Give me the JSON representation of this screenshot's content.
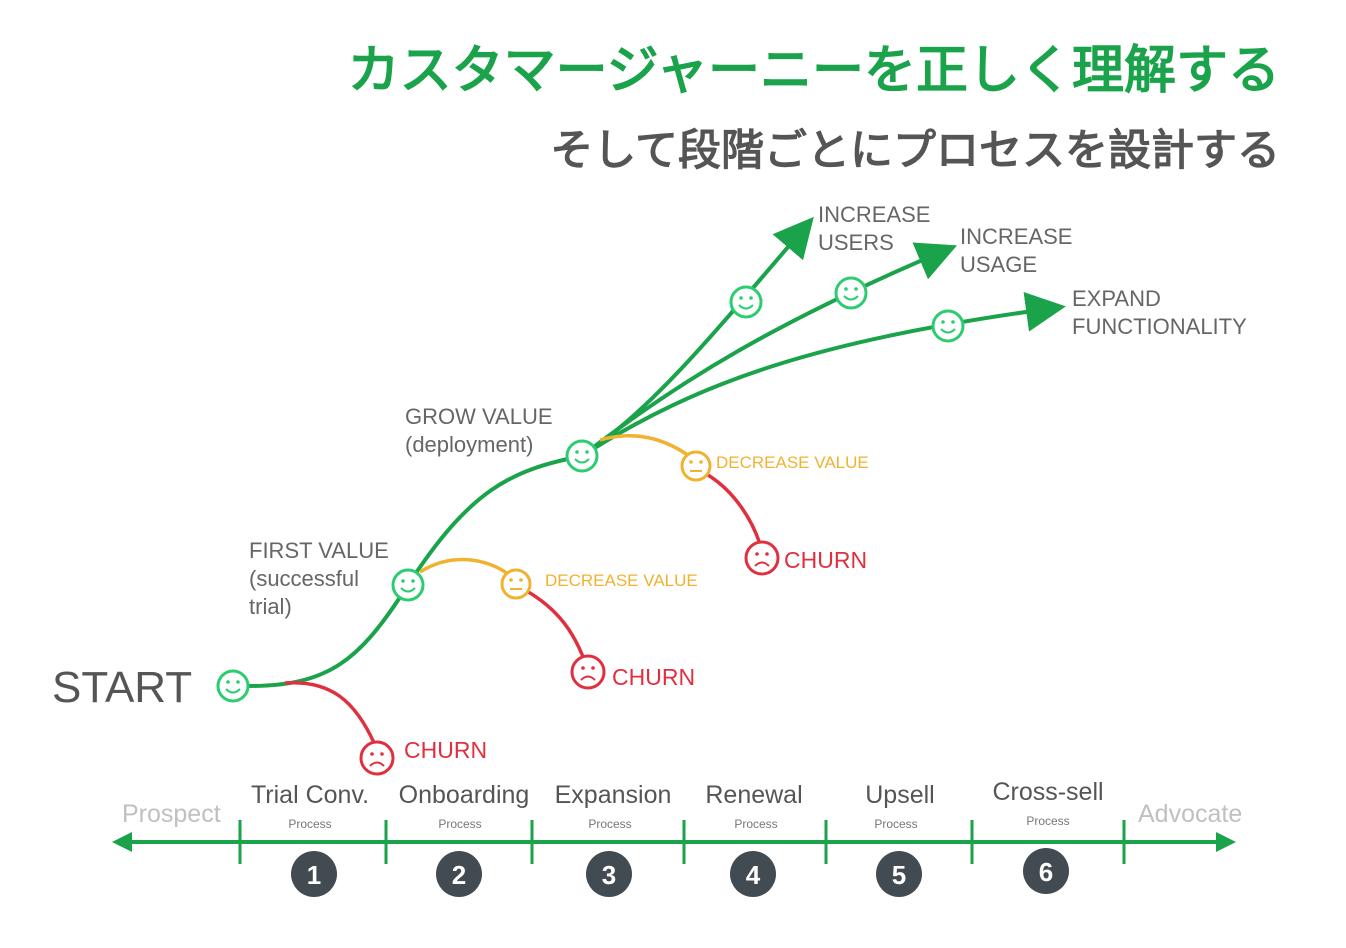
{
  "header": {
    "title": "カスタマージャーニーを正しく理解する",
    "subtitle": "そして段階ごとにプロセスを設計する"
  },
  "colors": {
    "green": "#1aa34a",
    "yellow": "#f0b230",
    "red": "#e03040",
    "gray": "#555555"
  },
  "journey": {
    "start": "START",
    "first_value": [
      "FIRST VALUE",
      "(successful",
      "trial)"
    ],
    "grow_value": [
      "GROW VALUE",
      "(deployment)"
    ],
    "increase_users": [
      "INCREASE",
      "USERS"
    ],
    "increase_usage": [
      "INCREASE",
      "USAGE"
    ],
    "expand_functionality": [
      "EXPAND",
      "FUNCTIONALITY"
    ],
    "decrease_value_1": "DECREASE VALUE",
    "decrease_value_2": "DECREASE VALUE",
    "churn_1": "CHURN",
    "churn_2": "CHURN",
    "churn_3": "CHURN"
  },
  "timeline": {
    "left_label": "Prospect",
    "right_label": "Advocate",
    "process_label": "Process",
    "stages": [
      {
        "number": "1",
        "name": "Trial Conv."
      },
      {
        "number": "2",
        "name": "Onboarding"
      },
      {
        "number": "3",
        "name": "Expansion"
      },
      {
        "number": "4",
        "name": "Renewal"
      },
      {
        "number": "5",
        "name": "Upsell"
      },
      {
        "number": "6",
        "name": "Cross-sell"
      }
    ]
  }
}
